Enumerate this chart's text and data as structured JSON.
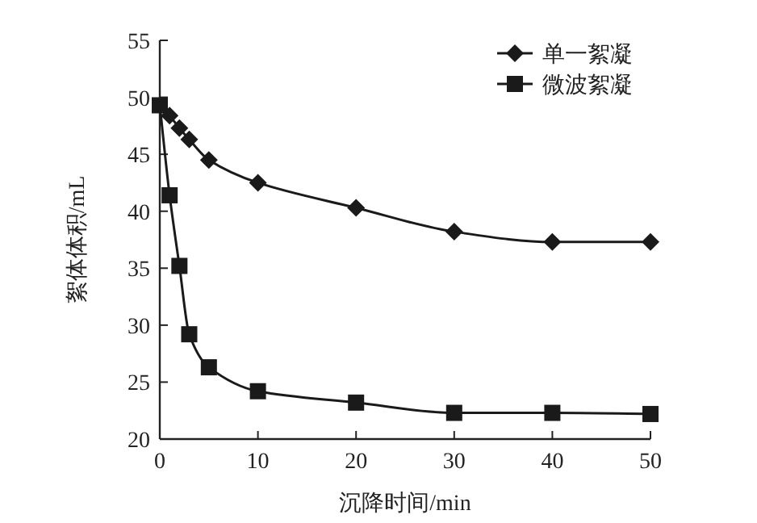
{
  "chart_data": {
    "type": "line",
    "xlabel": "沉降时间/min",
    "ylabel": "絮体体积/mL",
    "xlim": [
      0,
      50
    ],
    "xticks": [
      0,
      10,
      20,
      30,
      40,
      50
    ],
    "ylim": [
      20,
      55
    ],
    "yticks": [
      20,
      25,
      30,
      35,
      40,
      45,
      50,
      55
    ],
    "legend": "top right",
    "line_style": "solid",
    "series": [
      {
        "name": "单一絮凝",
        "color": "#1a1a1a",
        "marker": "diamond",
        "x": [
          1,
          2,
          3,
          5,
          10,
          20,
          30,
          40,
          50
        ],
        "values": [
          48.4,
          47.3,
          46.3,
          44.5,
          42.5,
          40.3,
          38.2,
          37.3,
          37.3
        ]
      },
      {
        "name": "微波絮凝",
        "color": "#1a1a1a",
        "marker": "square",
        "x": [
          0,
          1,
          2,
          3,
          5,
          10,
          20,
          30,
          40,
          50
        ],
        "values": [
          49.3,
          41.4,
          35.2,
          29.2,
          26.3,
          24.2,
          23.2,
          22.3,
          22.3,
          22.2
        ]
      }
    ]
  }
}
